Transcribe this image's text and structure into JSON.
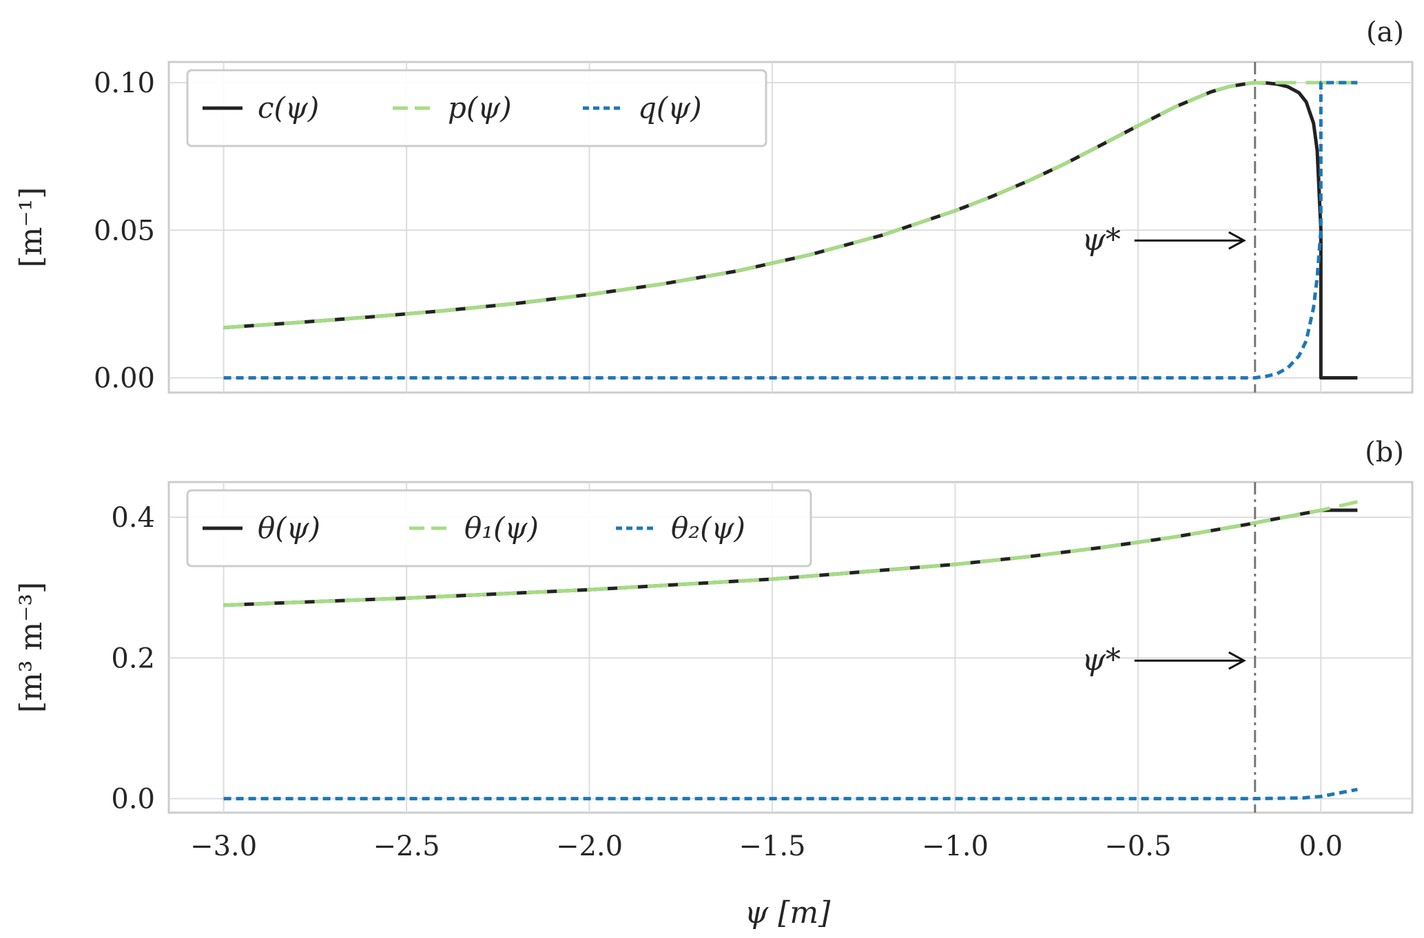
{
  "chart_data": [
    {
      "type": "line",
      "panel_label": "(a)",
      "ylabel": "[m⁻¹]",
      "xlim": [
        -3.15,
        0.25
      ],
      "ylim": [
        -0.005,
        0.107
      ],
      "xticks": [
        -3.0,
        -2.5,
        -2.0,
        -1.5,
        -1.0,
        -0.5,
        0.0
      ],
      "yticks": [
        0.0,
        0.05,
        0.1
      ],
      "ytick_labels": [
        "0.00",
        "0.05",
        "0.10"
      ],
      "grid": true,
      "legend": {
        "placement": "top-left",
        "columns": 3
      },
      "annotation": {
        "text": "ψ*",
        "x": -0.18
      },
      "series": [
        {
          "name": "c(ψ)",
          "color": "#222222",
          "style": "solid",
          "x": [
            -3.0,
            -2.8,
            -2.6,
            -2.4,
            -2.2,
            -2.0,
            -1.8,
            -1.6,
            -1.4,
            -1.2,
            -1.0,
            -0.9,
            -0.8,
            -0.7,
            -0.6,
            -0.5,
            -0.4,
            -0.3,
            -0.25,
            -0.2,
            -0.18,
            -0.15,
            -0.12,
            -0.09,
            -0.06,
            -0.04,
            -0.02,
            -0.01,
            0.0,
            0.0,
            0.1
          ],
          "y": [
            0.017,
            0.0187,
            0.0206,
            0.0227,
            0.0252,
            0.0282,
            0.0318,
            0.0361,
            0.0416,
            0.0483,
            0.0566,
            0.0614,
            0.0667,
            0.0725,
            0.0789,
            0.0854,
            0.0917,
            0.0969,
            0.0987,
            0.0997,
            0.1,
            0.0999,
            0.0995,
            0.0986,
            0.0966,
            0.0935,
            0.0862,
            0.077,
            0.0501,
            0.0,
            0.0
          ]
        },
        {
          "name": "p(ψ)",
          "color": "#a6dc84",
          "style": "dashed",
          "x": [
            -3.0,
            -2.8,
            -2.6,
            -2.4,
            -2.2,
            -2.0,
            -1.8,
            -1.6,
            -1.4,
            -1.2,
            -1.0,
            -0.9,
            -0.8,
            -0.7,
            -0.6,
            -0.5,
            -0.4,
            -0.3,
            -0.25,
            -0.2,
            -0.18,
            -0.1,
            0.0,
            0.1
          ],
          "y": [
            0.017,
            0.0187,
            0.0206,
            0.0227,
            0.0252,
            0.0282,
            0.0318,
            0.0361,
            0.0416,
            0.0483,
            0.0566,
            0.0614,
            0.0667,
            0.0725,
            0.0789,
            0.0854,
            0.0917,
            0.0969,
            0.0987,
            0.0997,
            0.1,
            0.1,
            0.1,
            0.1
          ]
        },
        {
          "name": "q(ψ)",
          "color": "#1f77b4",
          "style": "dotted",
          "x": [
            -3.0,
            -0.18,
            -0.15,
            -0.12,
            -0.09,
            -0.06,
            -0.04,
            -0.02,
            -0.01,
            0.0,
            0.0,
            0.1
          ],
          "y": [
            0.0,
            0.0,
            0.0005,
            0.0014,
            0.0034,
            0.0074,
            0.0125,
            0.0238,
            0.0341,
            0.0499,
            0.1,
            0.1
          ]
        }
      ]
    },
    {
      "type": "line",
      "panel_label": "(b)",
      "xlabel": "ψ [m]",
      "ylabel": "[m³ m⁻³]",
      "xlim": [
        -3.15,
        0.25
      ],
      "ylim": [
        -0.02,
        0.45
      ],
      "xticks": [
        -3.0,
        -2.5,
        -2.0,
        -1.5,
        -1.0,
        -0.5,
        0.0
      ],
      "xtick_labels": [
        "−3.0",
        "−2.5",
        "−2.0",
        "−1.5",
        "−1.0",
        "−0.5",
        "0.0"
      ],
      "yticks": [
        0.0,
        0.2,
        0.4
      ],
      "ytick_labels": [
        "0.0",
        "0.2",
        "0.4"
      ],
      "grid": true,
      "legend": {
        "placement": "top-left",
        "columns": 3
      },
      "annotation": {
        "text": "ψ*",
        "x": -0.18
      },
      "series": [
        {
          "name": "θ(ψ)",
          "color": "#222222",
          "style": "solid",
          "x": [
            -3.0,
            -2.5,
            -2.0,
            -1.5,
            -1.0,
            -0.8,
            -0.6,
            -0.4,
            -0.2,
            -0.18,
            -0.1,
            0.0,
            0.1
          ],
          "y": [
            0.275,
            0.285,
            0.297,
            0.312,
            0.333,
            0.344,
            0.357,
            0.372,
            0.39,
            0.392,
            0.4,
            0.41,
            0.41
          ]
        },
        {
          "name": "θ₁(ψ)",
          "color": "#a6dc84",
          "style": "dashed",
          "x": [
            -3.0,
            -2.5,
            -2.0,
            -1.5,
            -1.0,
            -0.8,
            -0.6,
            -0.4,
            -0.2,
            -0.18,
            -0.1,
            0.0,
            0.1
          ],
          "y": [
            0.275,
            0.285,
            0.297,
            0.312,
            0.333,
            0.344,
            0.357,
            0.372,
            0.39,
            0.392,
            0.4,
            0.41,
            0.422
          ]
        },
        {
          "name": "θ₂(ψ)",
          "color": "#1f77b4",
          "style": "dotted",
          "x": [
            -3.0,
            -0.18,
            -0.05,
            0.0,
            0.05,
            0.1
          ],
          "y": [
            0.0,
            0.0,
            0.001,
            0.003,
            0.008,
            0.013
          ]
        }
      ]
    }
  ]
}
